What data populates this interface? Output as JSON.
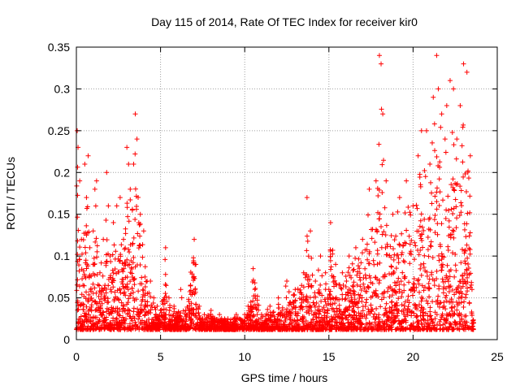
{
  "chart_data": {
    "type": "scatter",
    "title": "Day 115 of 2014, Rate Of TEC Index for receiver kir0",
    "xlabel": "GPS time / hours",
    "ylabel": "ROTI / TECUs",
    "xlim": [
      0,
      25
    ],
    "ylim": [
      0,
      0.35
    ],
    "xticks": [
      "0",
      "5",
      "10",
      "15",
      "20",
      "25"
    ],
    "yticks": [
      "0",
      "0.05",
      "0.1",
      "0.15",
      "0.2",
      "0.25",
      "0.3",
      "0.35"
    ],
    "grid": true,
    "marker": "plus",
    "colors": {
      "series": "#ff0000",
      "grid": "#a0a0a0",
      "frame": "#000000"
    },
    "series": [
      {
        "name": "",
        "points": [
          [
            0.05,
            0.25
          ],
          [
            0.1,
            0.23
          ],
          [
            0.2,
            0.19
          ],
          [
            0.3,
            0.12
          ],
          [
            0.5,
            0.21
          ],
          [
            0.6,
            0.17
          ],
          [
            0.7,
            0.22
          ],
          [
            0.8,
            0.11
          ],
          [
            1.0,
            0.13
          ],
          [
            1.1,
            0.18
          ],
          [
            1.2,
            0.19
          ],
          [
            1.4,
            0.08
          ],
          [
            1.6,
            0.12
          ],
          [
            1.8,
            0.2
          ],
          [
            1.9,
            0.16
          ],
          [
            2.0,
            0.1
          ],
          [
            2.2,
            0.14
          ],
          [
            2.4,
            0.16
          ],
          [
            2.6,
            0.17
          ],
          [
            2.8,
            0.12
          ],
          [
            3.0,
            0.23
          ],
          [
            3.1,
            0.21
          ],
          [
            3.2,
            0.18
          ],
          [
            3.4,
            0.21
          ],
          [
            3.5,
            0.27
          ],
          [
            3.6,
            0.24
          ],
          [
            3.8,
            0.15
          ],
          [
            4.0,
            0.13
          ],
          [
            4.2,
            0.07
          ],
          [
            4.4,
            0.07
          ],
          [
            4.6,
            0.05
          ],
          [
            4.8,
            0.04
          ],
          [
            5.0,
            0.035
          ],
          [
            5.3,
            0.11
          ],
          [
            5.5,
            0.05
          ],
          [
            5.8,
            0.04
          ],
          [
            6.0,
            0.03
          ],
          [
            6.2,
            0.06
          ],
          [
            6.5,
            0.035
          ],
          [
            7.0,
            0.12
          ],
          [
            7.1,
            0.09
          ],
          [
            7.3,
            0.04
          ],
          [
            7.6,
            0.03
          ],
          [
            8.0,
            0.035
          ],
          [
            8.5,
            0.03
          ],
          [
            9.0,
            0.025
          ],
          [
            9.5,
            0.03
          ],
          [
            10.0,
            0.03
          ],
          [
            10.2,
            0.04
          ],
          [
            10.5,
            0.085
          ],
          [
            11.0,
            0.03
          ],
          [
            11.5,
            0.04
          ],
          [
            12.0,
            0.05
          ],
          [
            12.5,
            0.07
          ],
          [
            13.0,
            0.06
          ],
          [
            13.5,
            0.08
          ],
          [
            13.7,
            0.17
          ],
          [
            13.9,
            0.13
          ],
          [
            14.2,
            0.07
          ],
          [
            14.5,
            0.1
          ],
          [
            14.8,
            0.08
          ],
          [
            15.0,
            0.06
          ],
          [
            15.1,
            0.14
          ],
          [
            15.4,
            0.09
          ],
          [
            15.8,
            0.08
          ],
          [
            16.2,
            0.1
          ],
          [
            16.6,
            0.11
          ],
          [
            17.0,
            0.12
          ],
          [
            17.4,
            0.18
          ],
          [
            17.8,
            0.19
          ],
          [
            18.0,
            0.34
          ],
          [
            18.1,
            0.33
          ],
          [
            18.2,
            0.27
          ],
          [
            18.4,
            0.19
          ],
          [
            18.8,
            0.15
          ],
          [
            19.2,
            0.17
          ],
          [
            19.6,
            0.19
          ],
          [
            20.0,
            0.16
          ],
          [
            20.3,
            0.22
          ],
          [
            20.5,
            0.25
          ],
          [
            20.8,
            0.25
          ],
          [
            21.0,
            0.21
          ],
          [
            21.2,
            0.29
          ],
          [
            21.4,
            0.34
          ],
          [
            21.5,
            0.3
          ],
          [
            21.7,
            0.27
          ],
          [
            21.9,
            0.24
          ],
          [
            22.0,
            0.28
          ],
          [
            22.2,
            0.31
          ],
          [
            22.4,
            0.3
          ],
          [
            22.6,
            0.24
          ],
          [
            22.8,
            0.28
          ],
          [
            23.0,
            0.33
          ],
          [
            23.2,
            0.32
          ],
          [
            23.4,
            0.22
          ],
          [
            23.5,
            0.06
          ],
          [
            23.6,
            0.02
          ]
        ]
      }
    ]
  }
}
